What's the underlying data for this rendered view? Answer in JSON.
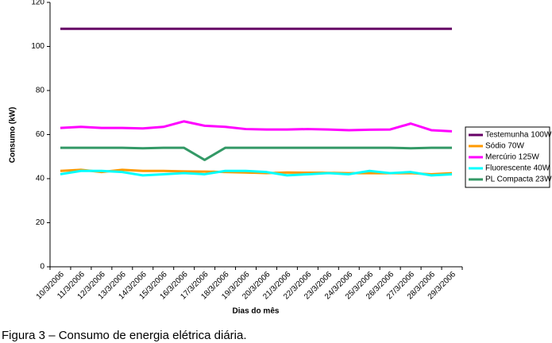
{
  "chart_data": {
    "type": "line",
    "x_label": "Dias do mês",
    "y_label": "Consumo (kW)",
    "categories": [
      "10/3/2006",
      "11/3/2006",
      "12/3/2006",
      "13/3/2006",
      "14/3/2006",
      "15/3/2006",
      "16/3/2006",
      "17/3/2006",
      "18/3/2006",
      "19/3/2006",
      "20/3/2006",
      "21/3/2006",
      "22/3/2006",
      "23/3/2006",
      "24/3/2006",
      "25/3/2006",
      "26/3/2006",
      "27/3/2006",
      "28/3/2006",
      "29/3/2006"
    ],
    "series": [
      {
        "name": "Testemunha 100W",
        "color": "#660066",
        "values": [
          108,
          108,
          108,
          108,
          108,
          108,
          108,
          108,
          108,
          108,
          108,
          108,
          108,
          108,
          108,
          108,
          108,
          108,
          108,
          108
        ]
      },
      {
        "name": "Sódio 70W",
        "color": "#ff9900",
        "values": [
          43.5,
          44,
          43,
          44,
          43.5,
          43.5,
          43.3,
          43.2,
          43,
          42.8,
          42.5,
          42.8,
          42.7,
          42.6,
          42.5,
          42.5,
          42.5,
          42.5,
          42,
          42.5
        ]
      },
      {
        "name": "Mercúrio 125W",
        "color": "#ff00ff",
        "values": [
          63,
          63.5,
          63,
          63,
          62.8,
          63.5,
          66,
          64,
          63.5,
          62.5,
          62.3,
          62.3,
          62.5,
          62.3,
          62,
          62.2,
          62.3,
          65,
          62,
          61.5
        ]
      },
      {
        "name": "Fluorescente 40W",
        "color": "#00ffff",
        "values": [
          42,
          43.5,
          43.5,
          43,
          41.5,
          42,
          42.5,
          42,
          43.5,
          43.5,
          43,
          41.5,
          42,
          42.5,
          42,
          43.5,
          42.5,
          43,
          41.5,
          42
        ]
      },
      {
        "name": "PL Compacta 23W",
        "color": "#339966",
        "values": [
          54,
          54,
          54,
          54,
          53.8,
          54,
          54,
          48.5,
          54,
          54,
          54,
          54,
          54,
          54,
          54,
          54,
          54,
          53.8,
          54,
          54
        ]
      }
    ],
    "ylim": [
      0,
      120
    ],
    "yticks": [
      0,
      20,
      40,
      60,
      80,
      100,
      120
    ],
    "grid": false,
    "legend": "right"
  },
  "caption": "Figura 3 – Consumo de energia elétrica diária."
}
